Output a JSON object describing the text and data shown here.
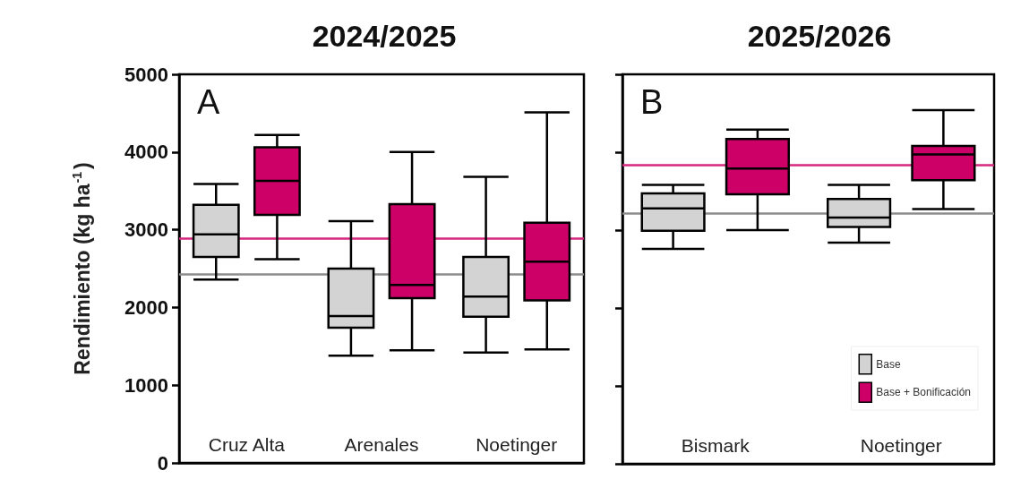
{
  "chart_data": [
    {
      "type": "box",
      "title": "2024/2025",
      "ylabel": "Rendimiento (kg ha$^{-1}$)",
      "annotations": [
        "A"
      ],
      "categories": [
        "Cruz Alta",
        "Arenales",
        "Noetinger"
      ],
      "ylim": [
        0,
        5000
      ],
      "yticks": [
        0,
        1000,
        2000,
        3000,
        4000,
        5000
      ],
      "series": [
        {
          "color": "#d3d3d3",
          "boxes": [
            {
              "low": 2360,
              "q1": 2650,
              "median": 2940,
              "q3": 3320,
              "high": 3590
            },
            {
              "low": 1380,
              "q1": 1740,
              "median": 1890,
              "q3": 2500,
              "high": 3110
            },
            {
              "low": 1420,
              "q1": 1880,
              "median": 2140,
              "q3": 2650,
              "high": 3680
            }
          ]
        },
        {
          "color": "#cc0066",
          "boxes": [
            {
              "low": 2620,
              "q1": 3190,
              "median": 3630,
              "q3": 4060,
              "high": 4220
            },
            {
              "low": 1450,
              "q1": 2120,
              "median": 2290,
              "q3": 3330,
              "high": 4000
            },
            {
              "low": 1460,
              "q1": 2090,
              "median": 2590,
              "q3": 3090,
              "high": 4510
            }
          ]
        }
      ],
      "ref_lines": [
        {
          "axis": "y",
          "value": 2890,
          "color": "#d6287f"
        },
        {
          "axis": "y",
          "value": 2430,
          "color": "#8c8c8c"
        }
      ]
    },
    {
      "type": "box",
      "title": "2025/2026",
      "annotations": [
        "B"
      ],
      "categories": [
        "Bismark",
        "Noetinger"
      ],
      "ylim": [
        0,
        5000
      ],
      "yticks": [
        0,
        1000,
        2000,
        3000,
        4000,
        5000
      ],
      "tick_labels": "x",
      "legend": "bottom right",
      "series": [
        {
          "name": "Base",
          "color": "#d3d3d3",
          "boxes": [
            {
              "low": 2760,
              "q1": 2990,
              "median": 3280,
              "q3": 3470,
              "high": 3580
            },
            {
              "low": 2840,
              "q1": 3040,
              "median": 3160,
              "q3": 3400,
              "high": 3580
            }
          ]
        },
        {
          "name": "Base + Bonificación",
          "color": "#cc0066",
          "boxes": [
            {
              "low": 3000,
              "q1": 3460,
              "median": 3790,
              "q3": 4170,
              "high": 4290
            },
            {
              "low": 3270,
              "q1": 3640,
              "median": 3970,
              "q3": 4080,
              "high": 4540
            }
          ]
        }
      ],
      "ref_lines": [
        {
          "axis": "y",
          "value": 3840,
          "color": "#d6287f"
        },
        {
          "axis": "y",
          "value": 3220,
          "color": "#8c8c8c"
        }
      ]
    }
  ]
}
